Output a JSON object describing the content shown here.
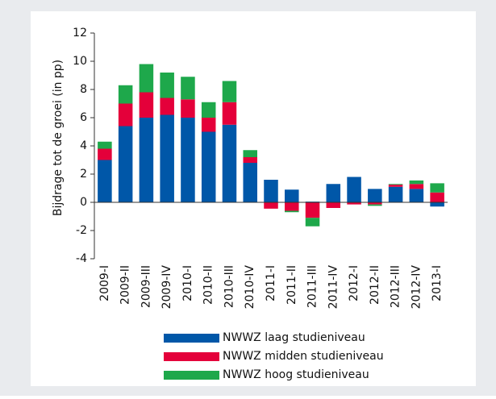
{
  "chart_data": {
    "type": "stacked-bar",
    "y_label": "Bijdrage tot de groei (in pp)",
    "categories": [
      "2009-I",
      "2009-II",
      "2009-III",
      "2009-IV",
      "2010-I",
      "2010-II",
      "2010-III",
      "2010-IV",
      "2011-I",
      "2011-II",
      "2011-III",
      "2011-IV",
      "2012-I",
      "2012-II",
      "2012-III",
      "2012-IV",
      "2013-I"
    ],
    "series": [
      {
        "name": "NWWZ laag studieniveau",
        "color": "#0057a8",
        "values": [
          3.0,
          5.4,
          6.0,
          6.2,
          6.0,
          5.0,
          5.5,
          2.8,
          1.6,
          0.9,
          0.05,
          1.3,
          1.8,
          0.95,
          1.1,
          0.95,
          -0.3
        ]
      },
      {
        "name": "NWWZ midden studieniveau",
        "color": "#e4003a",
        "values": [
          0.8,
          1.6,
          1.8,
          1.2,
          1.3,
          1.0,
          1.6,
          0.4,
          -0.45,
          -0.6,
          -1.1,
          -0.4,
          -0.15,
          -0.15,
          0.15,
          0.35,
          0.7
        ]
      },
      {
        "name": "NWWZ hoog studieniveau",
        "color": "#1ea84b",
        "values": [
          0.5,
          1.3,
          2.0,
          1.8,
          1.6,
          1.1,
          1.5,
          0.5,
          0,
          -0.1,
          -0.6,
          0,
          0,
          -0.1,
          0.05,
          0.25,
          0.65
        ]
      }
    ],
    "ylim": [
      -4,
      12
    ],
    "yticks": [
      -4,
      -2,
      0,
      2,
      4,
      6,
      8,
      10,
      12
    ]
  }
}
